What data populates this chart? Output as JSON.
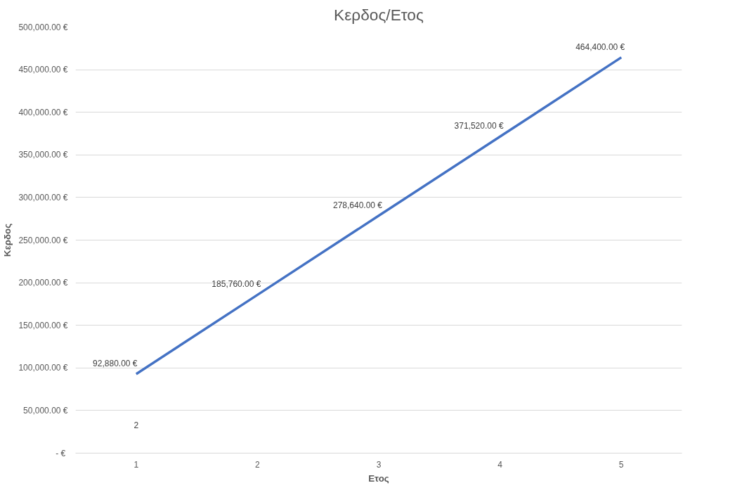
{
  "chart_data": {
    "type": "line",
    "title": "Κερδος/Ετος",
    "xlabel": "Ετος",
    "ylabel": "Κερδος",
    "x": [
      1,
      2,
      3,
      4,
      5
    ],
    "series": [
      {
        "color": "#4472c4",
        "values": [
          92880,
          185760,
          278640,
          371520,
          464400
        ],
        "value_labels": [
          "92,880.00 €",
          "185,760.00 €",
          "278,640.00 €",
          "371,520.00 €",
          "464,400.00 €"
        ]
      }
    ],
    "xlim": [
      0.5,
      5.5
    ],
    "xticks": [
      1,
      2,
      3,
      4,
      5
    ],
    "ylim": [
      0,
      500000
    ],
    "yticks": [
      {
        "value": 0,
        "label": "-  €"
      },
      {
        "value": 50000,
        "label": "50,000.00 €"
      },
      {
        "value": 100000,
        "label": "100,000.00 €"
      },
      {
        "value": 150000,
        "label": "150,000.00 €"
      },
      {
        "value": 200000,
        "label": "200,000.00 €"
      },
      {
        "value": 250000,
        "label": "250,000.00 €"
      },
      {
        "value": 300000,
        "label": "300,000.00 €"
      },
      {
        "value": 350000,
        "label": "350,000.00 €"
      },
      {
        "value": 400000,
        "label": "400,000.00 €"
      },
      {
        "value": 450000,
        "label": "450,000.00 €"
      },
      {
        "value": 500000,
        "label": "500,000.00 €"
      }
    ],
    "annotations": [
      "2"
    ],
    "grid": "y",
    "marker": "none",
    "line_style": "solid"
  }
}
